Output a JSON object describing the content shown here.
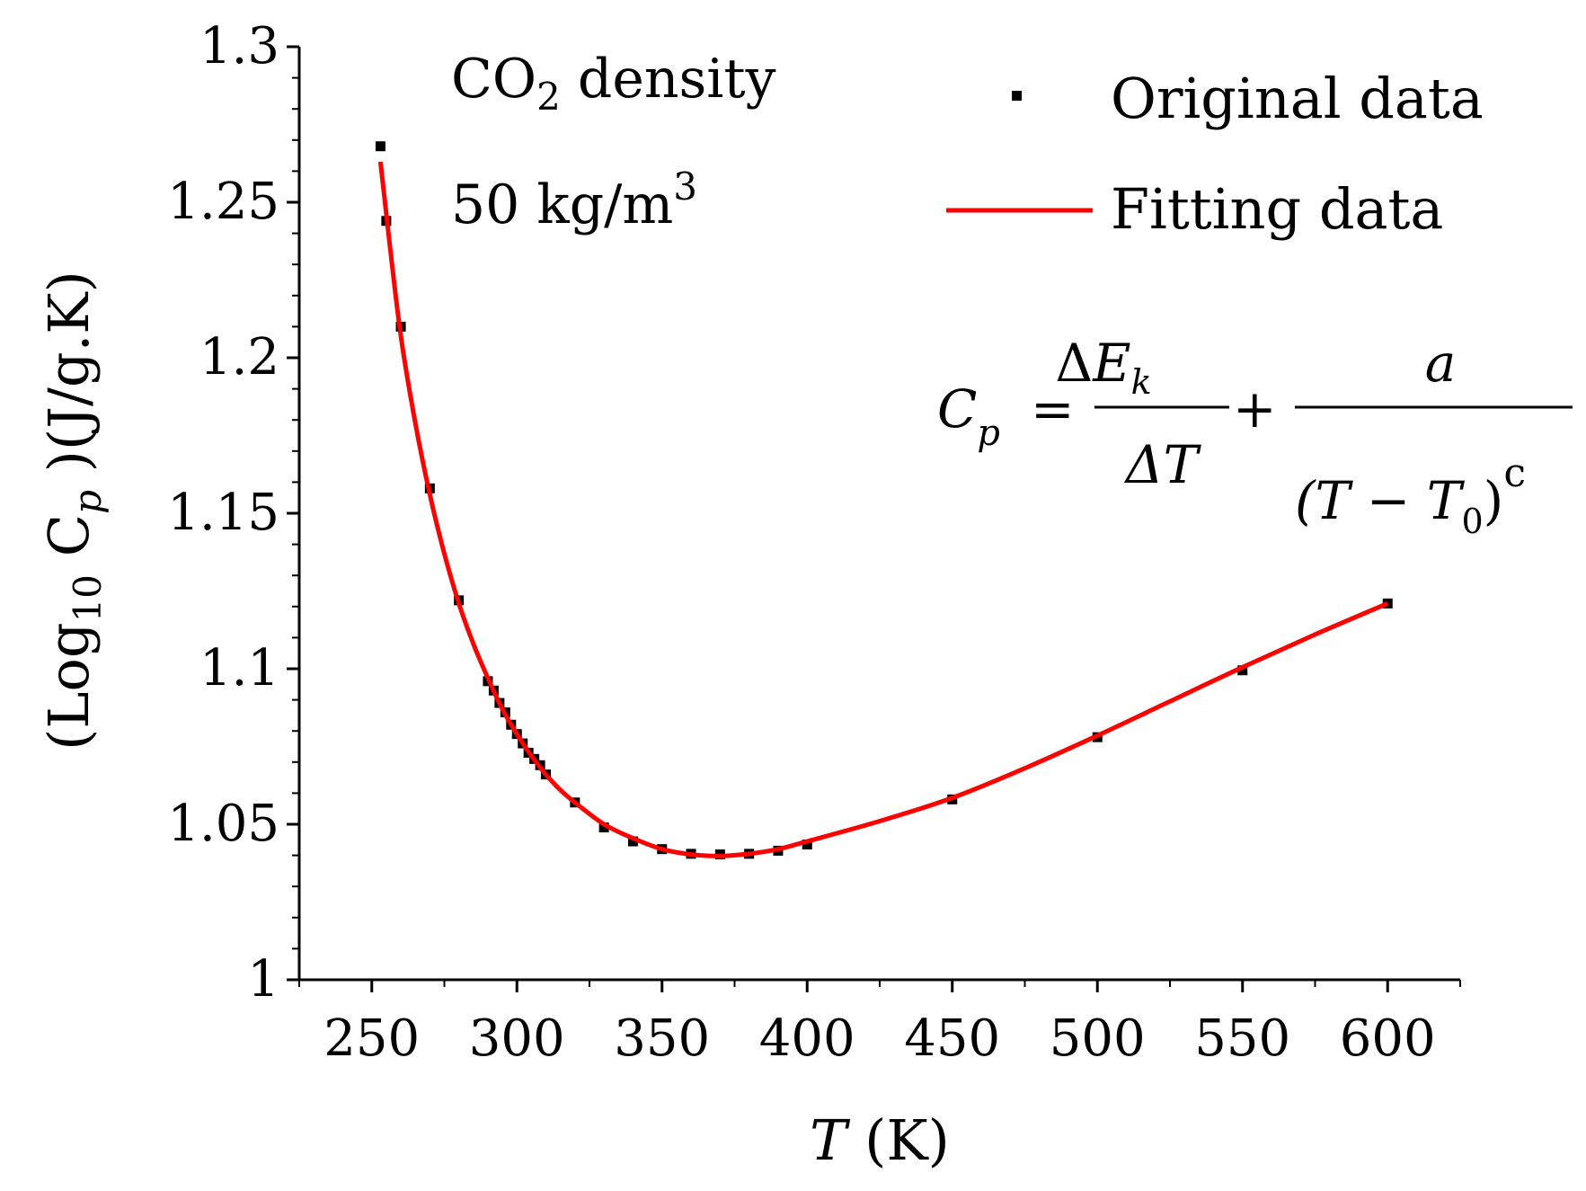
{
  "chart_data": {
    "type": "scatter",
    "title": "",
    "annotation": {
      "line1_pre": "CO",
      "line1_sub": "2",
      "line1_post": " density",
      "line2_pre": "50 kg/m",
      "line2_sup": "3"
    },
    "xlabel_var": "T",
    "xlabel_unit": " (K)",
    "ylabel": {
      "open": "(Log",
      "sub10": "10",
      "c": " C",
      "p": "p",
      "rest": " )(J/g.K)"
    },
    "xlim": [
      225,
      625
    ],
    "ylim": [
      1.0,
      1.3
    ],
    "x_ticks": [
      250,
      300,
      350,
      400,
      450,
      500,
      550,
      600
    ],
    "x_tick_labels": [
      "250",
      "300",
      "350",
      "400",
      "450",
      "500",
      "550",
      "600"
    ],
    "y_ticks": [
      1.0,
      1.05,
      1.1,
      1.15,
      1.2,
      1.25,
      1.3
    ],
    "y_tick_labels": [
      "1",
      "1.05",
      "1.1",
      "1.15",
      "1.2",
      "1.25",
      "1.3"
    ],
    "series": [
      {
        "name": "Original data",
        "kind": "scatter",
        "color": "#000000",
        "x": [
          253,
          255,
          260,
          270,
          280,
          290,
          292,
          294,
          296,
          298,
          300,
          302,
          304,
          306,
          308,
          310,
          320,
          330,
          340,
          350,
          360,
          370,
          380,
          390,
          400,
          450,
          500,
          550,
          600
        ],
        "y": [
          1.268,
          1.244,
          1.21,
          1.158,
          1.122,
          1.096,
          1.093,
          1.089,
          1.086,
          1.082,
          1.079,
          1.076,
          1.073,
          1.071,
          1.069,
          1.066,
          1.057,
          1.049,
          1.0445,
          1.042,
          1.0405,
          1.0403,
          1.0405,
          1.0415,
          1.0435,
          1.058,
          1.078,
          1.0995,
          1.121
        ]
      },
      {
        "name": "Fitting data",
        "kind": "line",
        "color": "#ff0000",
        "x": [
          253,
          256,
          260,
          265,
          270,
          275,
          280,
          285,
          290,
          295,
          300,
          305,
          310,
          315,
          320,
          330,
          340,
          350,
          360,
          370,
          380,
          390,
          400,
          425,
          450,
          475,
          500,
          525,
          550,
          575,
          600
        ],
        "y": [
          1.263,
          1.238,
          1.207,
          1.179,
          1.156,
          1.137,
          1.121,
          1.108,
          1.097,
          1.087,
          1.079,
          1.072,
          1.066,
          1.061,
          1.057,
          1.05,
          1.0455,
          1.042,
          1.0403,
          1.0398,
          1.0405,
          1.042,
          1.0445,
          1.051,
          1.0585,
          1.068,
          1.0785,
          1.0895,
          1.1005,
          1.111,
          1.121
        ]
      }
    ],
    "legend": {
      "position": "top-right",
      "entries": [
        "Original data",
        "Fitting data"
      ]
    },
    "formula": {
      "lhs_c": "C",
      "lhs_p": "p",
      "eq": "=",
      "num1_delta": "Δ",
      "num1_e": "E",
      "num1_k": "k",
      "den1": "ΔT",
      "plus": "+",
      "num2": "a",
      "den2_open": "(T − T",
      "den2_zero": "0",
      "den2_close": ")",
      "den2_exp": "c"
    }
  }
}
